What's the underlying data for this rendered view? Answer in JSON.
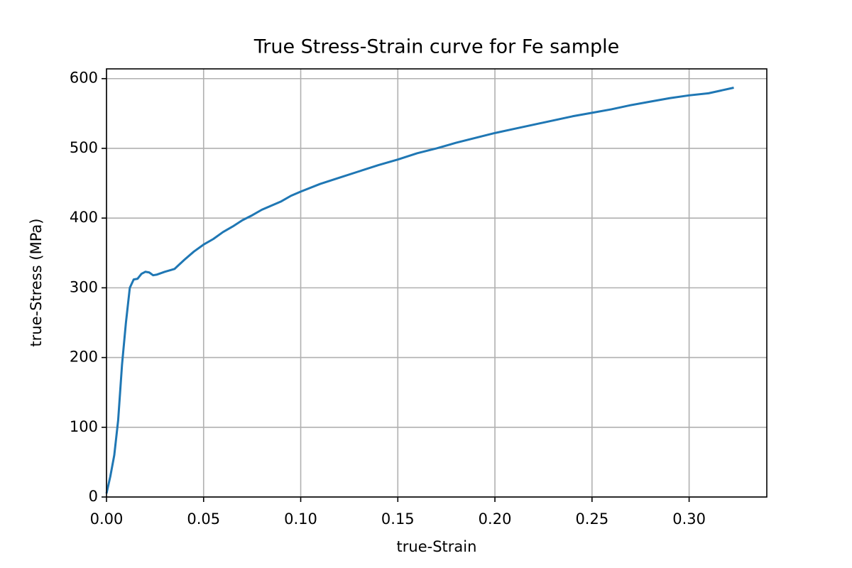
{
  "chart_data": {
    "type": "line",
    "title": "True Stress-Strain curve for Fe sample",
    "xlabel": "true-Strain",
    "ylabel": "true-Stress (MPa)",
    "x": [
      0,
      0.002,
      0.004,
      0.006,
      0.008,
      0.01,
      0.012,
      0.014,
      0.016,
      0.018,
      0.02,
      0.022,
      0.024,
      0.026,
      0.03,
      0.035,
      0.04,
      0.045,
      0.05,
      0.055,
      0.06,
      0.065,
      0.07,
      0.075,
      0.08,
      0.085,
      0.09,
      0.095,
      0.1,
      0.11,
      0.12,
      0.13,
      0.14,
      0.15,
      0.16,
      0.17,
      0.18,
      0.19,
      0.2,
      0.21,
      0.22,
      0.23,
      0.24,
      0.25,
      0.26,
      0.27,
      0.28,
      0.29,
      0.3,
      0.31,
      0.323
    ],
    "series": [
      {
        "name": "true-Stress",
        "color": "#1f77b4",
        "values": [
          5,
          30,
          60,
          110,
          190,
          250,
          300,
          312,
          313,
          320,
          323,
          322,
          318,
          319,
          323,
          327,
          340,
          352,
          362,
          370,
          380,
          388,
          397,
          404,
          412,
          418,
          424,
          432,
          438,
          449,
          458,
          467,
          476,
          484,
          493,
          500,
          508,
          515,
          522,
          528,
          534,
          540,
          546,
          551,
          556,
          562,
          567,
          572,
          576,
          579,
          587
        ]
      }
    ],
    "xlim": [
      0,
      0.34
    ],
    "ylim": [
      0,
      614
    ],
    "xticks": [
      {
        "value": 0,
        "label": "0.00"
      },
      {
        "value": 0.05,
        "label": "0.05"
      },
      {
        "value": 0.1,
        "label": "0.10"
      },
      {
        "value": 0.15,
        "label": "0.15"
      },
      {
        "value": 0.2,
        "label": "0.20"
      },
      {
        "value": 0.25,
        "label": "0.25"
      },
      {
        "value": 0.3,
        "label": "0.30"
      }
    ],
    "yticks": [
      0,
      100,
      200,
      300,
      400,
      500,
      600
    ],
    "grid": true
  }
}
